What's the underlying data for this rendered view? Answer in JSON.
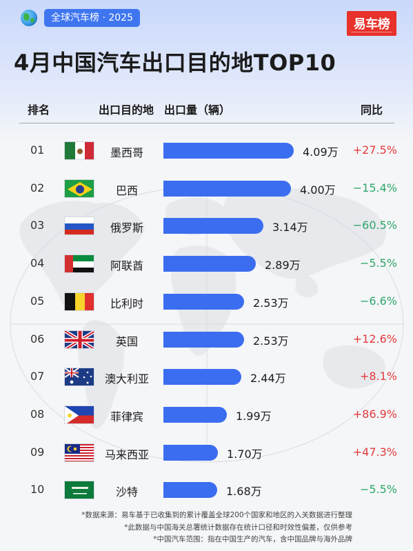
{
  "header": {
    "tag": "全球汽车榜 · 2025",
    "logo_text": "易车榜",
    "title": "4月中国汽车出口目的地TOP10",
    "brand_color": "#3b6df0",
    "logo_color": "#e8322b"
  },
  "table": {
    "col_rank": "排名",
    "col_country": "出口目的地",
    "col_volume": "出口量（辆）",
    "col_yoy": "同比"
  },
  "chart_data": {
    "type": "bar",
    "title": "4月中国汽车出口目的地TOP10",
    "orientation": "horizontal",
    "unit": "万辆",
    "categories": [
      "墨西哥",
      "巴西",
      "俄罗斯",
      "阿联酋",
      "比利时",
      "英国",
      "澳大利亚",
      "菲律宾",
      "马来西亚",
      "沙特"
    ],
    "values": [
      4.09,
      4.0,
      3.14,
      2.89,
      2.53,
      2.53,
      2.44,
      1.99,
      1.7,
      1.68
    ],
    "value_labels": [
      "4.09万",
      "4.00万",
      "3.14万",
      "2.89万",
      "2.53万",
      "2.53万",
      "2.44万",
      "1.99万",
      "1.70万",
      "1.68万"
    ],
    "ranks": [
      "01",
      "02",
      "03",
      "04",
      "05",
      "06",
      "07",
      "08",
      "09",
      "10"
    ],
    "yoy": [
      "+27.5%",
      "−15.4%",
      "−60.5%",
      "−5.5%",
      "−6.6%",
      "+12.6%",
      "+8.1%",
      "+86.9%",
      "+47.3%",
      "−5.5%"
    ],
    "yoy_direction": [
      "up",
      "down",
      "down",
      "down",
      "down",
      "up",
      "up",
      "up",
      "up",
      "down"
    ],
    "flags": [
      "mexico-flag",
      "brazil-flag",
      "russia-flag",
      "uae-flag",
      "belgium-flag",
      "uk-flag",
      "australia-flag",
      "philippines-flag",
      "malaysia-flag",
      "saudi-flag"
    ],
    "colors": {
      "bar": "#3b6df0",
      "up": "#e23a3a",
      "down": "#2fa66a"
    }
  },
  "footnotes": [
    "*数据来源：易车基于已收集到的累计覆盖全球200个国家和地区的入关数据进行整理",
    "*此数据与中国海关总署统计数据存在统计口径和时效性偏差，仅供参考",
    "*中国汽车范围：指在中国生产的汽车，含中国品牌与海外品牌"
  ]
}
